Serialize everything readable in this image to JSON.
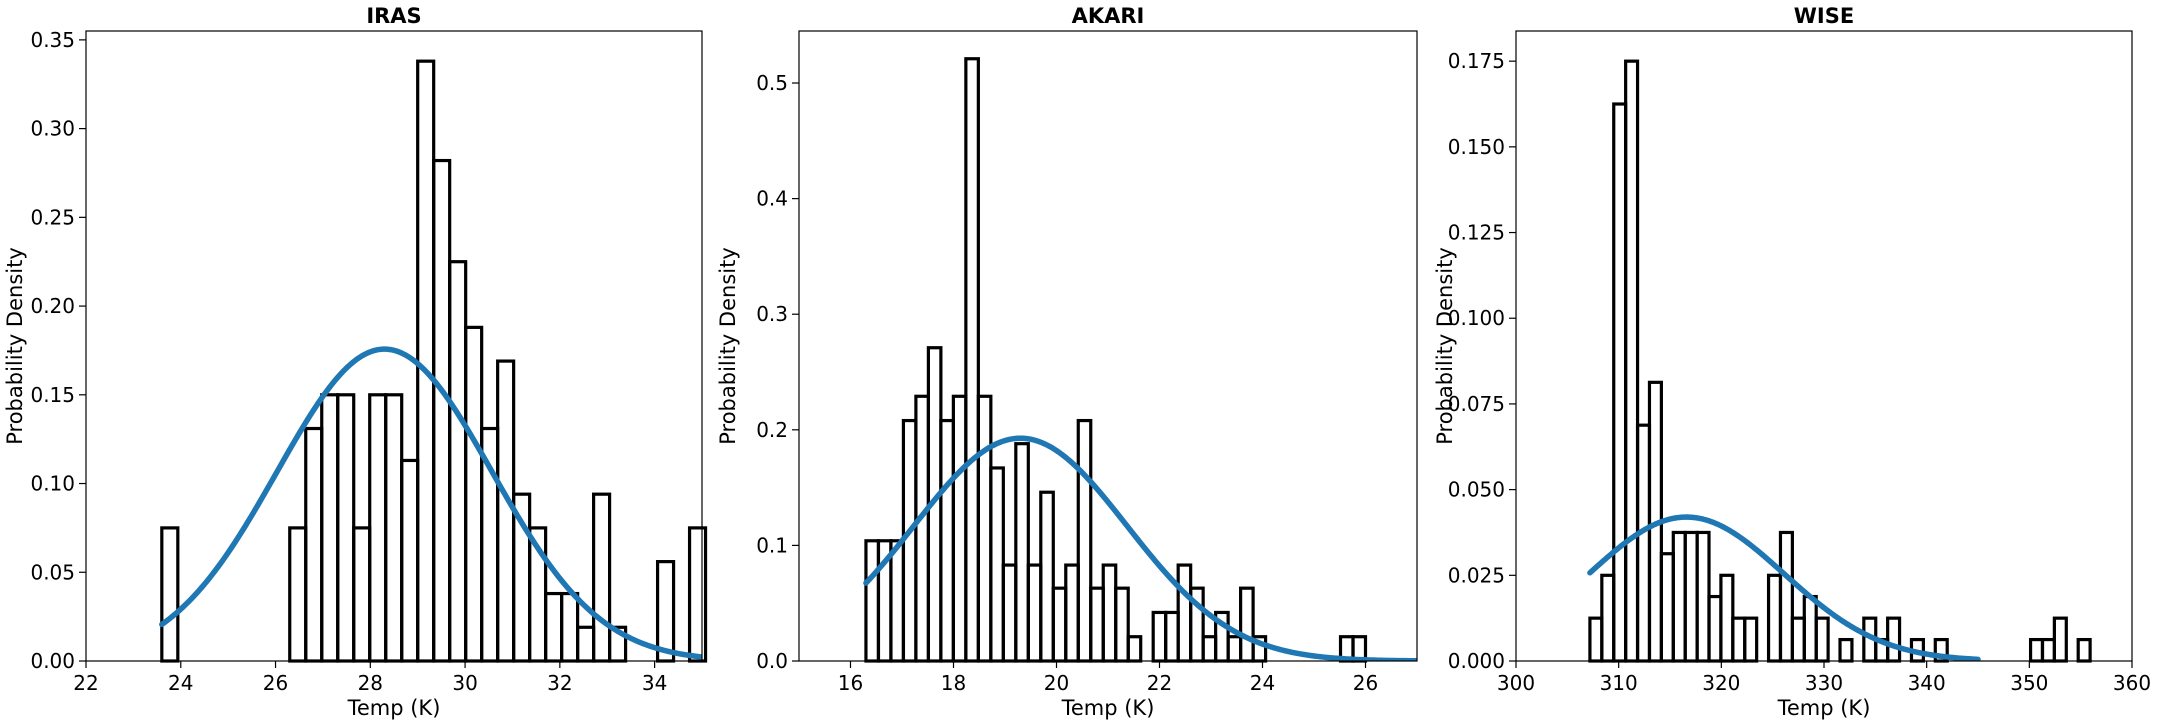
{
  "chart_data": [
    {
      "type": "bar",
      "title": "IRAS",
      "xlabel": "Temp (K)",
      "ylabel": "Probability Density",
      "xlim": [
        22,
        35
      ],
      "ylim": [
        0,
        0.355
      ],
      "xticks": [
        22,
        24,
        26,
        28,
        30,
        32,
        34
      ],
      "yticks": [
        0.0,
        0.05,
        0.1,
        0.15,
        0.2,
        0.25,
        0.3,
        0.35
      ],
      "ytick_decimals": 2,
      "bin_start": 23.6,
      "bin_width": 0.3375,
      "values": [
        0.075,
        0.0,
        0.0,
        0.0,
        0.0,
        0.0,
        0.0,
        0.0,
        0.075,
        0.131,
        0.15,
        0.15,
        0.075,
        0.15,
        0.15,
        0.113,
        0.338,
        0.282,
        0.225,
        0.188,
        0.131,
        0.169,
        0.094,
        0.075,
        0.038,
        0.038,
        0.019,
        0.094,
        0.019,
        0.0,
        0.0,
        0.056,
        0.0,
        0.075
      ],
      "fit": {
        "mean": 28.3,
        "std": 2.27,
        "x_range": [
          23.6,
          35.0
        ],
        "color": "#1f77b4"
      }
    },
    {
      "type": "bar",
      "title": "AKARI",
      "xlabel": "Temp (K)",
      "ylabel": "Probability Density",
      "xlim": [
        15,
        27
      ],
      "ylim": [
        0,
        0.545
      ],
      "xticks": [
        16,
        18,
        20,
        22,
        24,
        26
      ],
      "yticks": [
        0.0,
        0.1,
        0.2,
        0.3,
        0.4,
        0.5
      ],
      "ytick_decimals": 1,
      "bin_start": 16.3,
      "bin_width": 0.2425,
      "values": [
        0.104,
        0.104,
        0.104,
        0.208,
        0.229,
        0.271,
        0.208,
        0.229,
        0.521,
        0.229,
        0.167,
        0.083,
        0.188,
        0.083,
        0.146,
        0.063,
        0.083,
        0.208,
        0.063,
        0.083,
        0.063,
        0.021,
        0.0,
        0.042,
        0.042,
        0.083,
        0.063,
        0.021,
        0.042,
        0.021,
        0.063,
        0.021,
        0.0,
        0.0,
        0.0,
        0.0,
        0.0,
        0.0,
        0.021,
        0.021
      ],
      "fit": {
        "mean": 19.3,
        "std": 2.07,
        "x_range": [
          16.3,
          27.0
        ],
        "color": "#1f77b4"
      }
    },
    {
      "type": "bar",
      "title": "WISE",
      "xlabel": "Temp (K)",
      "ylabel": "Probability Density",
      "xlim": [
        300,
        360
      ],
      "ylim": [
        0,
        0.1838
      ],
      "xticks": [
        300,
        310,
        320,
        330,
        340,
        350,
        360
      ],
      "yticks": [
        0.0,
        0.025,
        0.05,
        0.075,
        0.1,
        0.125,
        0.15,
        0.175
      ],
      "ytick_decimals": 3,
      "bin_start": 307.2,
      "bin_width": 1.16,
      "values": [
        0.0125,
        0.025,
        0.1625,
        0.175,
        0.0688,
        0.0813,
        0.0313,
        0.0375,
        0.0375,
        0.0375,
        0.0188,
        0.025,
        0.0125,
        0.0125,
        0.0,
        0.025,
        0.0375,
        0.0125,
        0.0188,
        0.0125,
        0.0,
        0.00625,
        0.0,
        0.0125,
        0.00625,
        0.0125,
        0.0,
        0.00625,
        0.0,
        0.00625,
        0.0,
        0.0,
        0.0,
        0.0,
        0.0,
        0.0,
        0.0,
        0.00625,
        0.00625,
        0.0125,
        0.0,
        0.00625
      ],
      "fit": {
        "mean": 316.6,
        "std": 9.5,
        "x_range": [
          307.2,
          345.0
        ],
        "color": "#1f77b4"
      }
    }
  ]
}
